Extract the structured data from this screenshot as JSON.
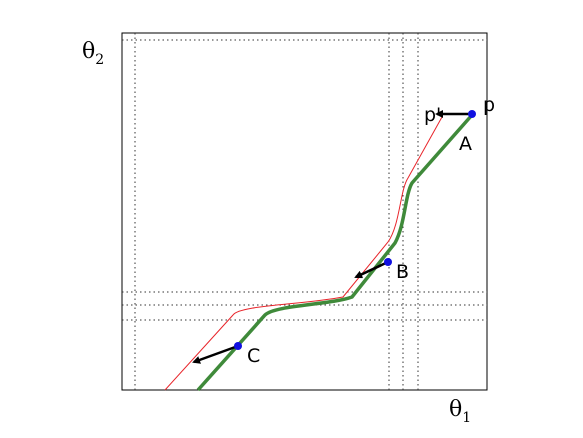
{
  "axes": {
    "y_label": {
      "base": "θ",
      "sub": "2"
    },
    "x_label": {
      "base": "θ",
      "sub": "1"
    }
  },
  "points": {
    "p_prime": "p'",
    "p": "p",
    "A": "A",
    "B": "B",
    "C": "C"
  }
}
